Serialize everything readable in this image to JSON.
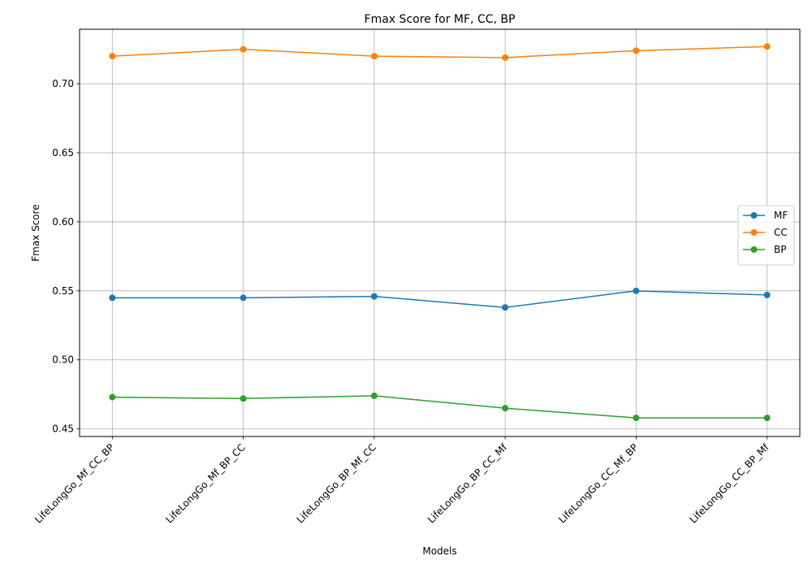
{
  "chart_data": {
    "type": "line",
    "title": "Fmax Score for MF, CC, BP",
    "xlabel": "Models",
    "ylabel": "Fmax Score",
    "categories": [
      "LifeLongGo_Mf_CC_BP",
      "LifeLongGo_Mf_BP_CC",
      "LifeLongGo_BP_Mf_CC",
      "LifeLongGo_BP_CC_Mf",
      "LifeLongGo_CC_Mf_BP",
      "LifeLongGo_CC_BP_Mf"
    ],
    "series": [
      {
        "name": "MF",
        "color": "#1f77b4",
        "marker": "circle",
        "values": [
          0.545,
          0.545,
          0.546,
          0.538,
          0.55,
          0.547
        ]
      },
      {
        "name": "CC",
        "color": "#ff7f0e",
        "marker": "circle",
        "values": [
          0.72,
          0.725,
          0.72,
          0.719,
          0.724,
          0.727
        ]
      },
      {
        "name": "BP",
        "color": "#2ca02c",
        "marker": "circle",
        "values": [
          0.473,
          0.472,
          0.474,
          0.465,
          0.458,
          0.458
        ]
      }
    ],
    "yticks": [
      0.45,
      0.5,
      0.55,
      0.6,
      0.65,
      0.7
    ],
    "ytick_labels": [
      "0.45",
      "0.50",
      "0.55",
      "0.60",
      "0.65",
      "0.70"
    ],
    "ylim": [
      0.4445,
      0.7395
    ],
    "grid": true,
    "legend_position": "center-right",
    "x_tick_rotation": 45
  }
}
